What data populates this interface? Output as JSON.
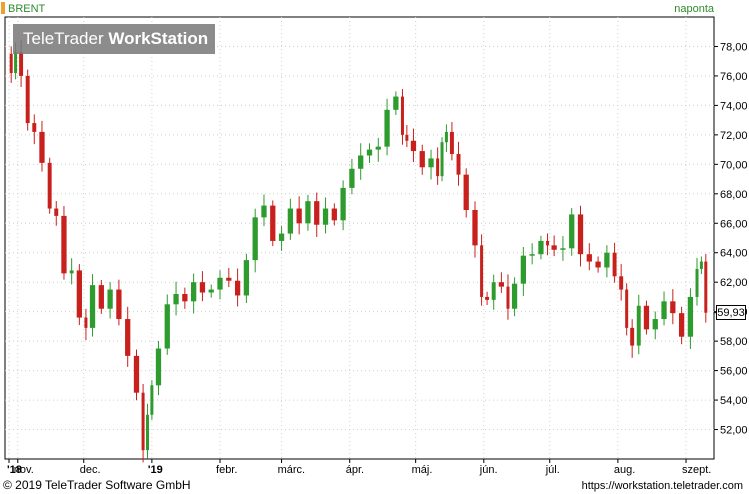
{
  "header": {
    "instrument": "BRENT",
    "period": "naponta"
  },
  "watermark": {
    "brand_light": "TeleTrader ",
    "brand_bold": "WorkStation"
  },
  "footer": {
    "copyright": "© 2019 TeleTrader Software GmbH",
    "url": "https://workstation.teletrader.com"
  },
  "last_price_label": "59,93",
  "colors": {
    "up": "#2e9b2e",
    "down": "#c8201c",
    "grid": "#d0d0d0",
    "axis": "#000000"
  },
  "chart_data": {
    "type": "candlestick",
    "title": "BRENT",
    "period": "naponta",
    "ylim": [
      50,
      80
    ],
    "y_ticks": [
      "52,00",
      "54,00",
      "56,00",
      "58,00",
      "60,00",
      "62,00",
      "64,00",
      "66,00",
      "68,00",
      "70,00",
      "72,00",
      "74,00",
      "76,00",
      "78,00"
    ],
    "x_ticks": [
      {
        "label": "'18",
        "bold": true
      },
      {
        "label": "nov.",
        "bold": false
      },
      {
        "label": "dec.",
        "bold": false
      },
      {
        "label": "'19",
        "bold": true
      },
      {
        "label": "febr.",
        "bold": false
      },
      {
        "label": "márc.",
        "bold": false
      },
      {
        "label": "ápr.",
        "bold": false
      },
      {
        "label": "máj.",
        "bold": false
      },
      {
        "label": "jún.",
        "bold": false
      },
      {
        "label": "júl.",
        "bold": false
      },
      {
        "label": "aug.",
        "bold": false
      },
      {
        "label": "szept.",
        "bold": false
      }
    ],
    "x_tick_days": [
      0,
      4,
      34,
      65,
      96,
      124,
      155,
      185,
      216,
      246,
      277,
      308
    ],
    "last_value": 59.93,
    "grid": true,
    "y_axis_side": "right",
    "close_series": [
      {
        "day": 0,
        "close": 77.5
      },
      {
        "day": 2,
        "close": 76.2
      },
      {
        "day": 4,
        "close": 77.6
      },
      {
        "day": 7,
        "close": 76.0
      },
      {
        "day": 10,
        "close": 72.8
      },
      {
        "day": 13,
        "close": 72.2
      },
      {
        "day": 17,
        "close": 70.1
      },
      {
        "day": 20,
        "close": 67.0
      },
      {
        "day": 23,
        "close": 66.5
      },
      {
        "day": 27,
        "close": 62.6
      },
      {
        "day": 30,
        "close": 62.8
      },
      {
        "day": 34,
        "close": 59.6
      },
      {
        "day": 36,
        "close": 58.9
      },
      {
        "day": 40,
        "close": 61.8
      },
      {
        "day": 44,
        "close": 60.2
      },
      {
        "day": 48,
        "close": 61.5
      },
      {
        "day": 52,
        "close": 59.5
      },
      {
        "day": 56,
        "close": 57.0
      },
      {
        "day": 60,
        "close": 54.5
      },
      {
        "day": 62,
        "close": 50.6
      },
      {
        "day": 64,
        "close": 53.0
      },
      {
        "day": 66,
        "close": 55.0
      },
      {
        "day": 70,
        "close": 57.5
      },
      {
        "day": 74,
        "close": 60.5
      },
      {
        "day": 78,
        "close": 61.2
      },
      {
        "day": 82,
        "close": 60.7
      },
      {
        "day": 86,
        "close": 62.0
      },
      {
        "day": 90,
        "close": 61.3
      },
      {
        "day": 94,
        "close": 61.5
      },
      {
        "day": 98,
        "close": 62.3
      },
      {
        "day": 102,
        "close": 62.1
      },
      {
        "day": 106,
        "close": 61.1
      },
      {
        "day": 110,
        "close": 63.5
      },
      {
        "day": 114,
        "close": 66.4
      },
      {
        "day": 118,
        "close": 67.2
      },
      {
        "day": 122,
        "close": 64.8
      },
      {
        "day": 126,
        "close": 65.3
      },
      {
        "day": 130,
        "close": 67.0
      },
      {
        "day": 134,
        "close": 66.0
      },
      {
        "day": 138,
        "close": 67.5
      },
      {
        "day": 142,
        "close": 65.9
      },
      {
        "day": 146,
        "close": 67.0
      },
      {
        "day": 150,
        "close": 66.2
      },
      {
        "day": 154,
        "close": 68.4
      },
      {
        "day": 158,
        "close": 69.7
      },
      {
        "day": 162,
        "close": 70.6
      },
      {
        "day": 166,
        "close": 71.0
      },
      {
        "day": 170,
        "close": 71.2
      },
      {
        "day": 174,
        "close": 73.7
      },
      {
        "day": 178,
        "close": 74.6
      },
      {
        "day": 180,
        "close": 72.0
      },
      {
        "day": 182,
        "close": 71.6
      },
      {
        "day": 186,
        "close": 70.9
      },
      {
        "day": 190,
        "close": 69.8
      },
      {
        "day": 194,
        "close": 70.4
      },
      {
        "day": 196,
        "close": 69.2
      },
      {
        "day": 198,
        "close": 71.5
      },
      {
        "day": 200,
        "close": 72.2
      },
      {
        "day": 203,
        "close": 70.7
      },
      {
        "day": 206,
        "close": 69.3
      },
      {
        "day": 210,
        "close": 66.9
      },
      {
        "day": 214,
        "close": 64.5
      },
      {
        "day": 216,
        "close": 61.0
      },
      {
        "day": 219,
        "close": 60.8
      },
      {
        "day": 222,
        "close": 62.0
      },
      {
        "day": 226,
        "close": 61.7
      },
      {
        "day": 228,
        "close": 60.2
      },
      {
        "day": 232,
        "close": 61.9
      },
      {
        "day": 236,
        "close": 63.8
      },
      {
        "day": 240,
        "close": 63.9
      },
      {
        "day": 244,
        "close": 64.8
      },
      {
        "day": 246,
        "close": 64.5
      },
      {
        "day": 250,
        "close": 64.2
      },
      {
        "day": 254,
        "close": 64.3
      },
      {
        "day": 258,
        "close": 66.6
      },
      {
        "day": 262,
        "close": 63.9
      },
      {
        "day": 266,
        "close": 63.4
      },
      {
        "day": 270,
        "close": 63.0
      },
      {
        "day": 274,
        "close": 64.0
      },
      {
        "day": 277,
        "close": 62.4
      },
      {
        "day": 280,
        "close": 61.5
      },
      {
        "day": 282,
        "close": 58.9
      },
      {
        "day": 285,
        "close": 57.7
      },
      {
        "day": 288,
        "close": 60.4
      },
      {
        "day": 292,
        "close": 58.8
      },
      {
        "day": 296,
        "close": 59.5
      },
      {
        "day": 300,
        "close": 60.7
      },
      {
        "day": 304,
        "close": 59.9
      },
      {
        "day": 308,
        "close": 58.3
      },
      {
        "day": 312,
        "close": 61.0
      },
      {
        "day": 314,
        "close": 62.9
      },
      {
        "day": 316,
        "close": 63.4
      },
      {
        "day": 318,
        "close": 59.93
      }
    ]
  }
}
